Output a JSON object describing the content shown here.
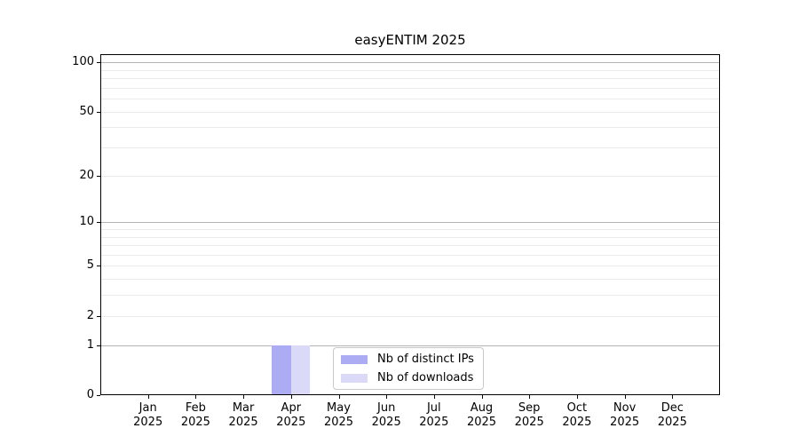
{
  "chart_data": {
    "type": "bar",
    "title": "easyENTIM 2025",
    "categories": [
      "Jan",
      "Feb",
      "Mar",
      "Apr",
      "May",
      "Jun",
      "Jul",
      "Aug",
      "Sep",
      "Oct",
      "Nov",
      "Dec"
    ],
    "category_year": "2025",
    "series": [
      {
        "name": "Nb of distinct IPs",
        "color": "#acacf4",
        "values": [
          0,
          0,
          0,
          1,
          0,
          0,
          0,
          0,
          0,
          0,
          0,
          0
        ]
      },
      {
        "name": "Nb of downloads",
        "color": "#dadaf8",
        "values": [
          0,
          0,
          0,
          1,
          0,
          0,
          0,
          0,
          0,
          0,
          0,
          0
        ]
      }
    ],
    "xlabel": "",
    "ylabel": "",
    "y_scale": "log10(1+x)",
    "y_ticks": [
      0,
      1,
      2,
      5,
      10,
      20,
      50,
      100
    ],
    "major_grid_values": [
      1,
      10,
      100
    ],
    "minor_grid_values": [
      2,
      3,
      4,
      5,
      6,
      7,
      8,
      9,
      20,
      30,
      40,
      50,
      60,
      70,
      80,
      90
    ],
    "ylim": [
      0,
      112
    ],
    "grid": "horizontal",
    "legend_position": "lower center",
    "style": {
      "major_grid_color": "#b3b3b3",
      "minor_grid_color": "#ebebeb",
      "spine_color": "#000000",
      "legend_border_color": "#c9c9c9",
      "background": "#ffffff",
      "text_color": "#000000"
    }
  }
}
